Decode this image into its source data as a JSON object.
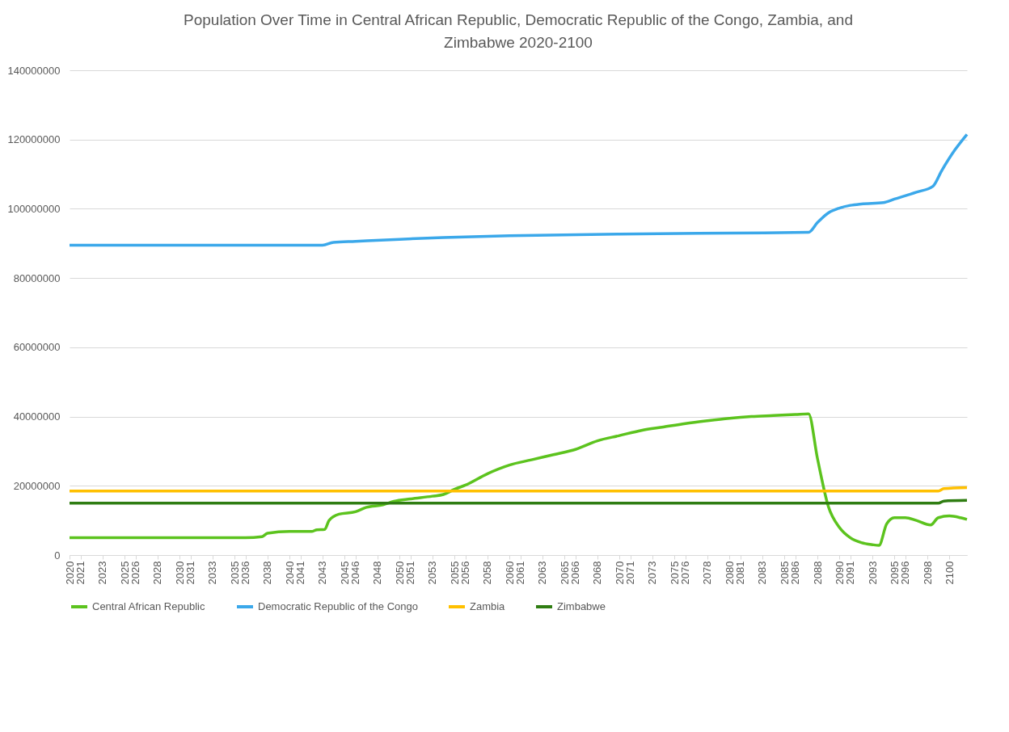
{
  "chart_data": {
    "type": "line",
    "title": "Population Over Time in Central African Republic, Democratic Republic of the Congo, Zambia, and Zimbabwe 2020-2100",
    "xlim": [
      2020,
      2101.6
    ],
    "ylim": [
      0,
      140000000
    ],
    "yticks": [
      0,
      20000000,
      40000000,
      60000000,
      80000000,
      100000000,
      120000000,
      140000000
    ],
    "xticks": [
      2020,
      2021,
      2023,
      2025,
      2026,
      2028,
      2030,
      2031,
      2033,
      2035,
      2036,
      2038,
      2040,
      2041,
      2043,
      2045,
      2046,
      2048,
      2050,
      2051,
      2053,
      2055,
      2056,
      2058,
      2060,
      2061,
      2063,
      2065,
      2066,
      2068,
      2070,
      2071,
      2073,
      2075,
      2076,
      2078,
      2080,
      2081,
      2083,
      2085,
      2086,
      2088,
      2090,
      2091,
      2093,
      2095,
      2096,
      2098,
      2100
    ],
    "grid": "y",
    "legend": "bottom",
    "marker": "none",
    "series": [
      {
        "name": "Central African Republic",
        "color": "#5cc31e",
        "x": [
          2020,
          2036,
          2037.5,
          2038,
          2040,
          2042,
          2042.5,
          2043.2,
          2043.6,
          2044.5,
          2046,
          2047,
          2048.5,
          2049.5,
          2051,
          2053,
          2054,
          2055,
          2056,
          2058,
          2060,
          2062,
          2064,
          2066,
          2068,
          2070,
          2072,
          2074,
          2076,
          2078,
          2080,
          2082,
          2084,
          2086,
          2087.2,
          2088,
          2089,
          2090,
          2091,
          2092,
          2093,
          2093.6,
          2094.3,
          2095,
          2096,
          2097,
          2098.3,
          2099,
          2100,
          2101,
          2101.6
        ],
        "values": [
          5000000,
          5000000,
          5300000,
          6300000,
          6800000,
          6800000,
          7300000,
          7400000,
          10000000,
          11800000,
          12500000,
          13800000,
          14500000,
          15500000,
          16200000,
          17000000,
          17500000,
          19000000,
          20200000,
          23500000,
          26000000,
          27500000,
          29000000,
          30500000,
          33000000,
          34500000,
          36000000,
          37000000,
          38000000,
          38800000,
          39500000,
          40000000,
          40300000,
          40600000,
          40800000,
          28000000,
          14000000,
          8000000,
          5000000,
          3600000,
          3000000,
          2800000,
          9000000,
          10800000,
          10800000,
          10000000,
          8700000,
          10800000,
          11300000,
          10800000,
          10300000
        ]
      },
      {
        "name": "Democratic Republic of the Congo",
        "color": "#3ba8ea",
        "x": [
          2020,
          2043,
          2044,
          2046,
          2050,
          2054,
          2060,
          2070,
          2080,
          2087.2,
          2088,
          2089,
          2090,
          2091,
          2092,
          2094,
          2095,
          2097,
          2098.5,
          2099.3,
          2100.5,
          2101.6
        ],
        "values": [
          89500000,
          89500000,
          90300000,
          90600000,
          91200000,
          91700000,
          92200000,
          92700000,
          93000000,
          93200000,
          96000000,
          98800000,
          100200000,
          101000000,
          101400000,
          101800000,
          102800000,
          104800000,
          106500000,
          111000000,
          117000000,
          121500000
        ]
      },
      {
        "name": "Zambia",
        "color": "#ffc000",
        "x": [
          2020,
          2099,
          2099.5,
          2101.6
        ],
        "values": [
          18500000,
          18500000,
          19200000,
          19500000
        ]
      },
      {
        "name": "Zimbabwe",
        "color": "#2f7d12",
        "x": [
          2020,
          2099,
          2099.5,
          2101.6
        ],
        "values": [
          15000000,
          15000000,
          15600000,
          15800000
        ]
      }
    ]
  }
}
